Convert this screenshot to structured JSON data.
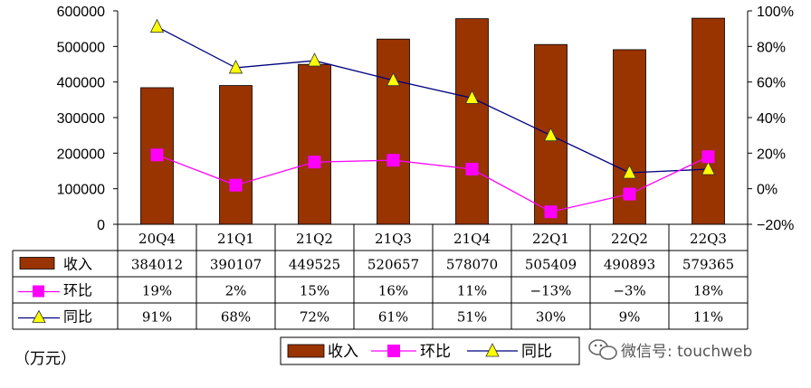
{
  "chart_data": {
    "type": "bar",
    "categories": [
      "20Q4",
      "21Q1",
      "21Q2",
      "21Q3",
      "21Q4",
      "22Q1",
      "22Q2",
      "22Q3"
    ],
    "series": [
      {
        "name": "收入",
        "type": "bar",
        "axis": "left",
        "color": "#993300",
        "values": [
          384012,
          390107,
          449525,
          520657,
          578070,
          505409,
          490893,
          579365
        ]
      },
      {
        "name": "环比",
        "type": "line",
        "axis": "right",
        "color": "#ff00ff",
        "values": [
          19,
          2,
          15,
          16,
          11,
          -13,
          -3,
          18
        ],
        "labels": [
          "19%",
          "2%",
          "15%",
          "16%",
          "11%",
          "−13%",
          "−3%",
          "18%"
        ]
      },
      {
        "name": "同比",
        "type": "line",
        "axis": "right",
        "color": "#000080",
        "marker_color": "#ffff00",
        "values": [
          91,
          68,
          72,
          61,
          51,
          30,
          9,
          11
        ],
        "labels": [
          "91%",
          "68%",
          "72%",
          "61%",
          "51%",
          "30%",
          "9%",
          "11%"
        ]
      }
    ],
    "left_axis": {
      "min": 0,
      "max": 600000,
      "ticks": [
        "0",
        "100000",
        "200000",
        "300000",
        "400000",
        "500000",
        "600000"
      ]
    },
    "right_axis": {
      "min": -20,
      "max": 100,
      "ticks": [
        "−20%",
        "0%",
        "20%",
        "40%",
        "60%",
        "80%",
        "100%"
      ]
    },
    "unit_label": "（万元）",
    "legend_position": "bottom-center",
    "grid": false
  },
  "watermark": {
    "icon": "wechat-icon",
    "text": "微信号: touchweb"
  }
}
